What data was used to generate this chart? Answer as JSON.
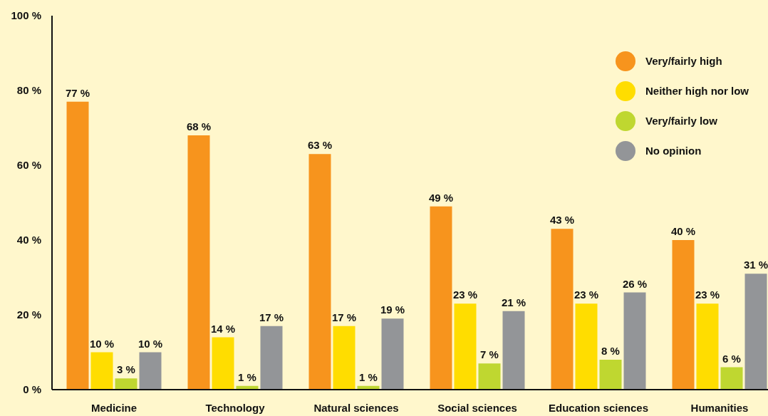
{
  "chart_data": {
    "type": "bar",
    "categories": [
      "Medicine",
      "Technology",
      "Natural sciences",
      "Social sciences",
      "Education sciences",
      "Humanities"
    ],
    "series": [
      {
        "name": "Very/fairly high",
        "color": "#f7941d",
        "values": [
          77,
          68,
          63,
          49,
          43,
          40
        ],
        "value_labels": [
          "77 %",
          "68 %",
          "63 %",
          "49 %",
          "43 %",
          "40 %"
        ]
      },
      {
        "name": "Neither high nor low",
        "color": "#ffdd00",
        "values": [
          10,
          14,
          17,
          23,
          23,
          23
        ],
        "value_labels": [
          "10 %",
          "14 %",
          "17 %",
          "23 %",
          "23 %",
          "23 %"
        ]
      },
      {
        "name": "Very/fairly low",
        "color": "#bfd730",
        "values": [
          3,
          1,
          1,
          7,
          8,
          6
        ],
        "value_labels": [
          "3 %",
          "1 %",
          "1 %",
          "7 %",
          "8 %",
          "6 %"
        ]
      },
      {
        "name": "No opinion",
        "color": "#939598",
        "values": [
          10,
          17,
          19,
          21,
          26,
          31
        ],
        "value_labels": [
          "10 %",
          "17 %",
          "19 %",
          "21 %",
          "26 %",
          "31 %"
        ]
      }
    ],
    "ylim": [
      0,
      100
    ],
    "yticks": [
      {
        "value": 0,
        "label": "0 %"
      },
      {
        "value": 20,
        "label": "20 %"
      },
      {
        "value": 40,
        "label": "40 %"
      },
      {
        "value": 60,
        "label": "60 %"
      },
      {
        "value": 80,
        "label": "80 %"
      },
      {
        "value": 100,
        "label": "100 %"
      }
    ],
    "grid": false,
    "legend": "top right"
  }
}
